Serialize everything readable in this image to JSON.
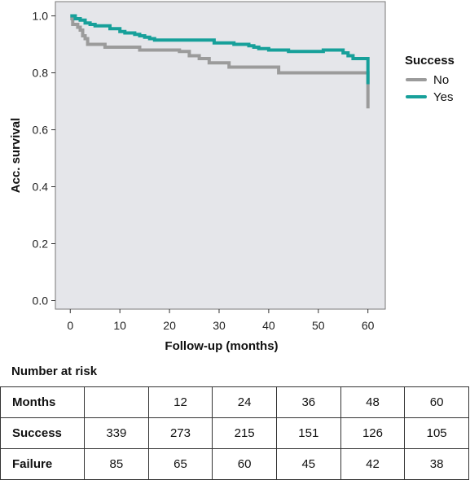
{
  "chart_data": {
    "type": "line",
    "subtype": "kaplan-meier step",
    "xlabel": "Follow-up (months)",
    "ylabel": "Acc. survival",
    "xlim": [
      -3,
      63.5
    ],
    "ylim": [
      -0.03,
      1.05
    ],
    "xticks": [
      0,
      10,
      20,
      30,
      40,
      50,
      60
    ],
    "yticks": [
      0.0,
      0.2,
      0.4,
      0.6,
      0.8,
      1.0
    ],
    "ytick_labels": [
      "0.0",
      "0.2",
      "0.4",
      "0.6",
      "0.8",
      "1.0"
    ],
    "grid": false,
    "background": "#e5e6ea",
    "legend": {
      "title": "Success",
      "placement": "right"
    },
    "series": [
      {
        "name": "No",
        "color": "#9b9b9b",
        "x": [
          0,
          0.5,
          1.5,
          2,
          2.5,
          3,
          3.5,
          7,
          14,
          22,
          24,
          26,
          28,
          32,
          42,
          60,
          60
        ],
        "y": [
          0.99,
          0.97,
          0.96,
          0.95,
          0.93,
          0.92,
          0.9,
          0.89,
          0.88,
          0.875,
          0.86,
          0.85,
          0.835,
          0.82,
          0.8,
          0.76,
          0.675
        ]
      },
      {
        "name": "Yes",
        "color": "#17a09a",
        "x": [
          0,
          1,
          2,
          3,
          4,
          5,
          8,
          10,
          11,
          13,
          14,
          15,
          16,
          17,
          29,
          33,
          36,
          37,
          38,
          40,
          44,
          51,
          55,
          56,
          57,
          60,
          60
        ],
        "y": [
          1.0,
          0.99,
          0.985,
          0.975,
          0.97,
          0.965,
          0.955,
          0.945,
          0.94,
          0.935,
          0.93,
          0.925,
          0.92,
          0.915,
          0.905,
          0.9,
          0.895,
          0.89,
          0.885,
          0.88,
          0.875,
          0.88,
          0.87,
          0.86,
          0.85,
          0.8,
          0.76
        ]
      }
    ]
  },
  "risk_table": {
    "title": "Number at risk",
    "header_label": "Months",
    "months": [
      "",
      "12",
      "24",
      "36",
      "48",
      "60"
    ],
    "rows": [
      {
        "label": "Success",
        "values": [
          "339",
          "273",
          "215",
          "151",
          "126",
          "105"
        ]
      },
      {
        "label": "Failure",
        "values": [
          "85",
          "65",
          "60",
          "45",
          "42",
          "38"
        ]
      }
    ]
  }
}
